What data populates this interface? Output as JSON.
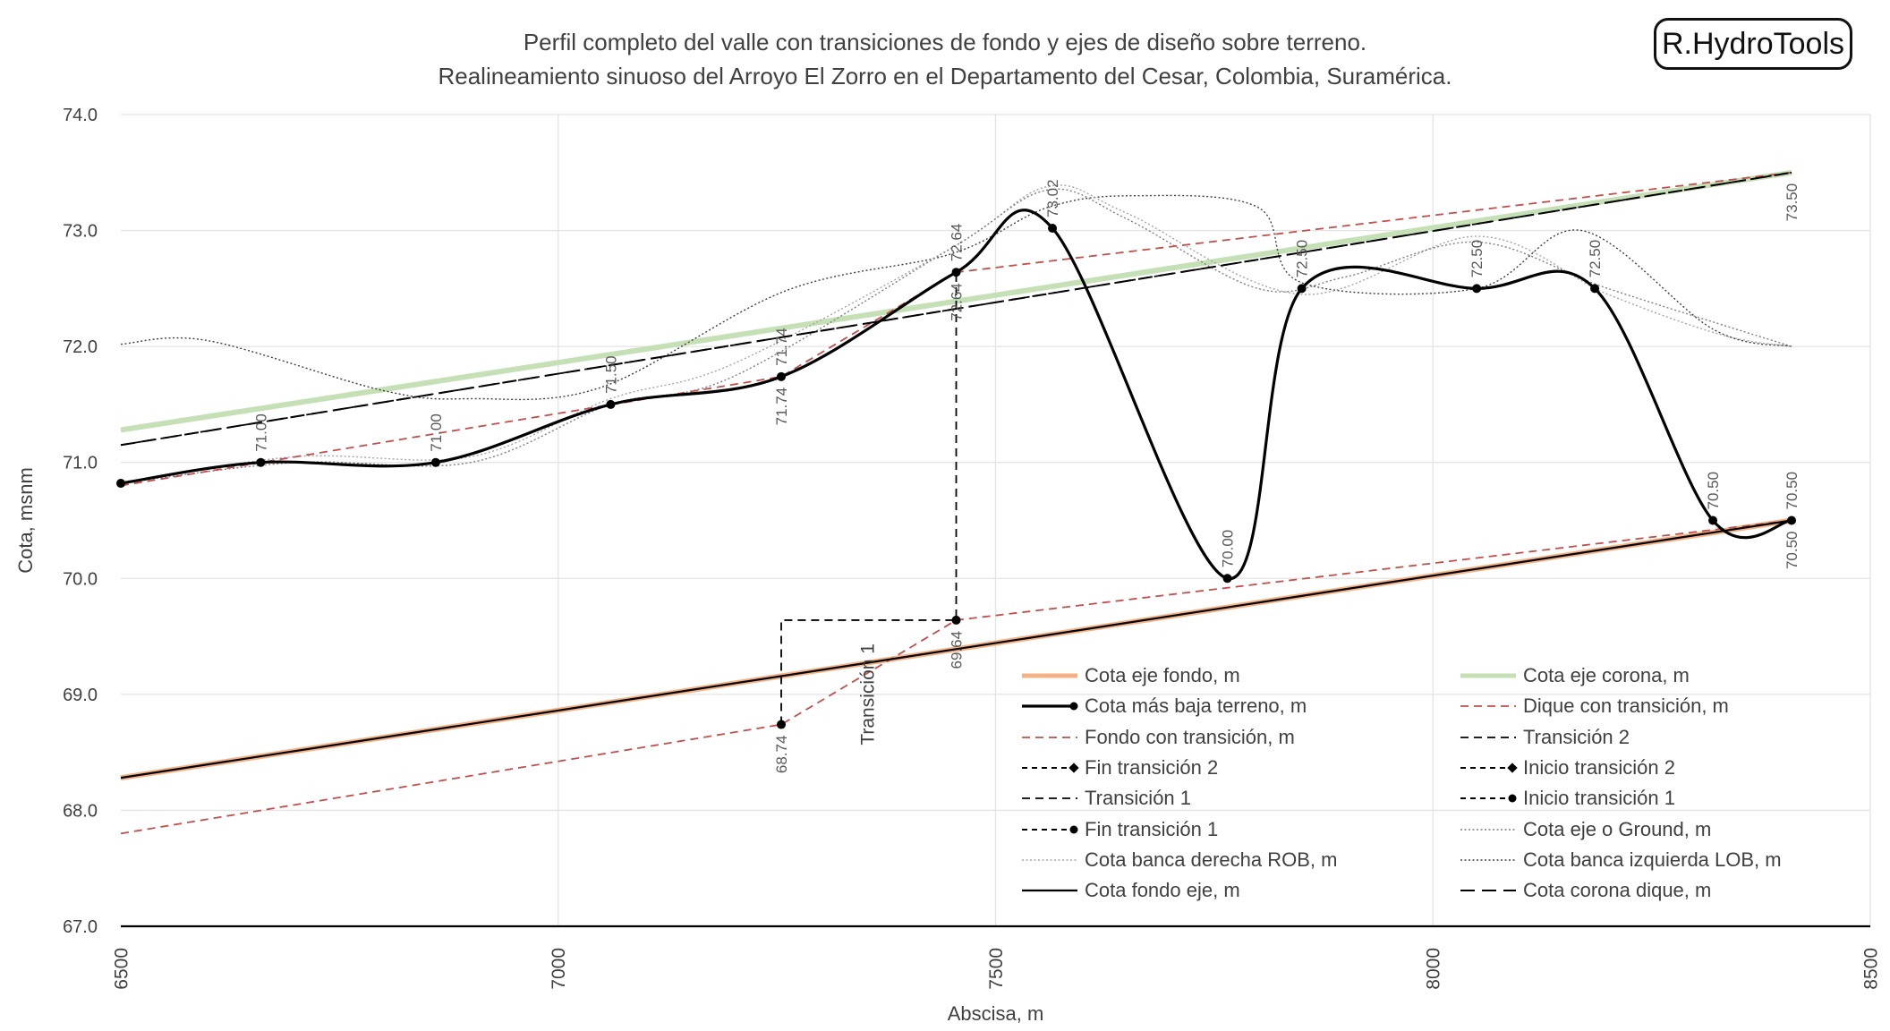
{
  "title_line1": "Perfil completo del valle con transiciones de fondo y ejes de diseño sobre terreno.",
  "title_line2": "Realineamiento sinuoso del Arroyo El Zorro en el Departamento del Cesar, Colombia, Suramérica.",
  "brand": "R.HydroTools",
  "chart_data": {
    "type": "line",
    "xlabel": "Abscisa, m",
    "ylabel": "Cota, msnm",
    "xlim": [
      6500,
      8500
    ],
    "ylim": [
      67.0,
      74.0
    ],
    "x_ticks": [
      "6500",
      "7000",
      "7500",
      "8000",
      "8500"
    ],
    "y_ticks": [
      "67.0",
      "68.0",
      "69.0",
      "70.0",
      "71.0",
      "72.0",
      "73.0",
      "74.0"
    ],
    "grid": true,
    "legend_position": "bottom-right",
    "series": [
      {
        "name": "Cota eje fondo, m",
        "color": "#f4b183",
        "style": "thick",
        "x": [
          6500,
          8410
        ],
        "y": [
          68.28,
          70.5
        ]
      },
      {
        "name": "Cota eje corona, m",
        "color": "#c5e0b4",
        "style": "thick",
        "x": [
          6500,
          8410
        ],
        "y": [
          71.28,
          73.5
        ]
      },
      {
        "name": "Cota más baja terreno, m",
        "color": "#000000",
        "style": "bold-markers",
        "x": [
          6500,
          6660,
          6860,
          7060,
          7255,
          7455,
          7565,
          7765,
          7850,
          8050,
          8185,
          8320,
          8410
        ],
        "y": [
          70.82,
          71.0,
          71.0,
          71.5,
          71.74,
          72.64,
          73.02,
          70.0,
          72.5,
          72.5,
          72.5,
          70.5,
          70.5
        ]
      },
      {
        "name": "Dique con transición, m",
        "color": "#c0504d",
        "style": "dashed",
        "x": [
          6500,
          7255,
          7455,
          8410
        ],
        "y": [
          70.8,
          71.74,
          72.64,
          73.5
        ]
      },
      {
        "name": "Fondo con transición, m",
        "color": "#c0504d",
        "style": "dashed",
        "x": [
          6500,
          7255,
          7455,
          8410
        ],
        "y": [
          67.8,
          68.74,
          69.64,
          70.5
        ]
      },
      {
        "name": "Transición 2",
        "color": "#000000",
        "style": "dashed",
        "x": [
          6500,
          8410
        ],
        "y": [
          71.15,
          73.5
        ]
      },
      {
        "name": "Fin transición 2",
        "color": "#000000",
        "style": "dashed-diamond",
        "x": [],
        "y": []
      },
      {
        "name": "Inicio transición 2",
        "color": "#000000",
        "style": "dashed-diamond",
        "x": [],
        "y": []
      },
      {
        "name": "Transición 1",
        "color": "#000000",
        "style": "dashed",
        "x": [
          7255,
          7255,
          7455,
          7455
        ],
        "y": [
          68.74,
          69.64,
          69.64,
          72.64
        ]
      },
      {
        "name": "Inicio transición 1",
        "color": "#000000",
        "style": "dashed-dot",
        "x": [
          7255
        ],
        "y": [
          68.74
        ]
      },
      {
        "name": "Fin transición 1",
        "color": "#000000",
        "style": "dashed-dot",
        "x": [
          7455
        ],
        "y": [
          69.64
        ]
      },
      {
        "name": "Cota eje o Ground, m",
        "color": "#7f7f7f",
        "style": "dotted",
        "x": [
          6500,
          6700,
          6900,
          7060,
          7200,
          7450,
          7560,
          7650,
          7800,
          7900,
          8050,
          8200,
          8410
        ],
        "y": [
          70.82,
          71.0,
          71.0,
          71.5,
          71.74,
          72.85,
          73.35,
          73.1,
          72.5,
          72.6,
          72.9,
          72.5,
          72.0
        ]
      },
      {
        "name": "Cota banca derecha ROB, m",
        "color": "#a6a6a6",
        "style": "dotted",
        "x": [
          6500,
          6700,
          6900,
          7060,
          7200,
          7450,
          7560,
          7650,
          7850,
          8050,
          8200,
          8330,
          8410
        ],
        "y": [
          70.82,
          71.05,
          71.05,
          71.55,
          71.85,
          72.85,
          73.38,
          73.15,
          72.45,
          72.95,
          72.45,
          72.1,
          72.0
        ]
      },
      {
        "name": "Cota banca izquierda LOB, m",
        "color": "#404040",
        "style": "dotted",
        "x": [
          6500,
          6600,
          6800,
          6900,
          7050,
          7260,
          7450,
          7560,
          7660,
          7800,
          7850,
          8050,
          8170,
          8320,
          8410
        ],
        "y": [
          72.02,
          72.05,
          71.62,
          71.55,
          71.65,
          72.48,
          72.8,
          73.2,
          73.3,
          73.2,
          72.55,
          72.5,
          73.0,
          72.15,
          72.0
        ]
      },
      {
        "name": "Cota fondo eje, m",
        "color": "#000000",
        "style": "solid",
        "x": [
          6500,
          8410
        ],
        "y": [
          68.28,
          70.5
        ]
      },
      {
        "name": "Cota corona dique, m",
        "color": "#000000",
        "style": "long-dash",
        "x": [
          6500,
          8410
        ],
        "y": [
          71.15,
          73.5
        ]
      }
    ],
    "data_labels": [
      {
        "x": 6660,
        "y": 71.0,
        "text": "71.00",
        "pos": "above"
      },
      {
        "x": 6860,
        "y": 71.0,
        "text": "71.00",
        "pos": "above"
      },
      {
        "x": 7060,
        "y": 71.5,
        "text": "71.50",
        "pos": "above"
      },
      {
        "x": 7255,
        "y": 71.74,
        "text": "71.74",
        "pos": "above"
      },
      {
        "x": 7255,
        "y": 71.74,
        "text": "71.74",
        "pos": "below"
      },
      {
        "x": 7455,
        "y": 72.64,
        "text": "72.64",
        "pos": "above"
      },
      {
        "x": 7455,
        "y": 72.64,
        "text": "72.64",
        "pos": "below"
      },
      {
        "x": 7565,
        "y": 73.02,
        "text": "73.02",
        "pos": "above"
      },
      {
        "x": 7765,
        "y": 70.0,
        "text": "70.00",
        "pos": "above"
      },
      {
        "x": 7850,
        "y": 72.5,
        "text": "72.50",
        "pos": "above"
      },
      {
        "x": 8050,
        "y": 72.5,
        "text": "72.50",
        "pos": "above"
      },
      {
        "x": 8185,
        "y": 72.5,
        "text": "72.50",
        "pos": "above"
      },
      {
        "x": 8320,
        "y": 70.5,
        "text": "70.50",
        "pos": "above"
      },
      {
        "x": 8410,
        "y": 70.5,
        "text": "70.50",
        "pos": "above"
      },
      {
        "x": 8410,
        "y": 70.5,
        "text": "70.50",
        "pos": "below"
      },
      {
        "x": 8410,
        "y": 73.5,
        "text": "73.50",
        "pos": "below"
      },
      {
        "x": 7255,
        "y": 68.74,
        "text": "68.74",
        "pos": "below"
      },
      {
        "x": 7455,
        "y": 69.64,
        "text": "69.64",
        "pos": "below"
      }
    ],
    "annotations": [
      {
        "x": 7355,
        "y": 69.0,
        "text": "Transición 1"
      }
    ]
  }
}
